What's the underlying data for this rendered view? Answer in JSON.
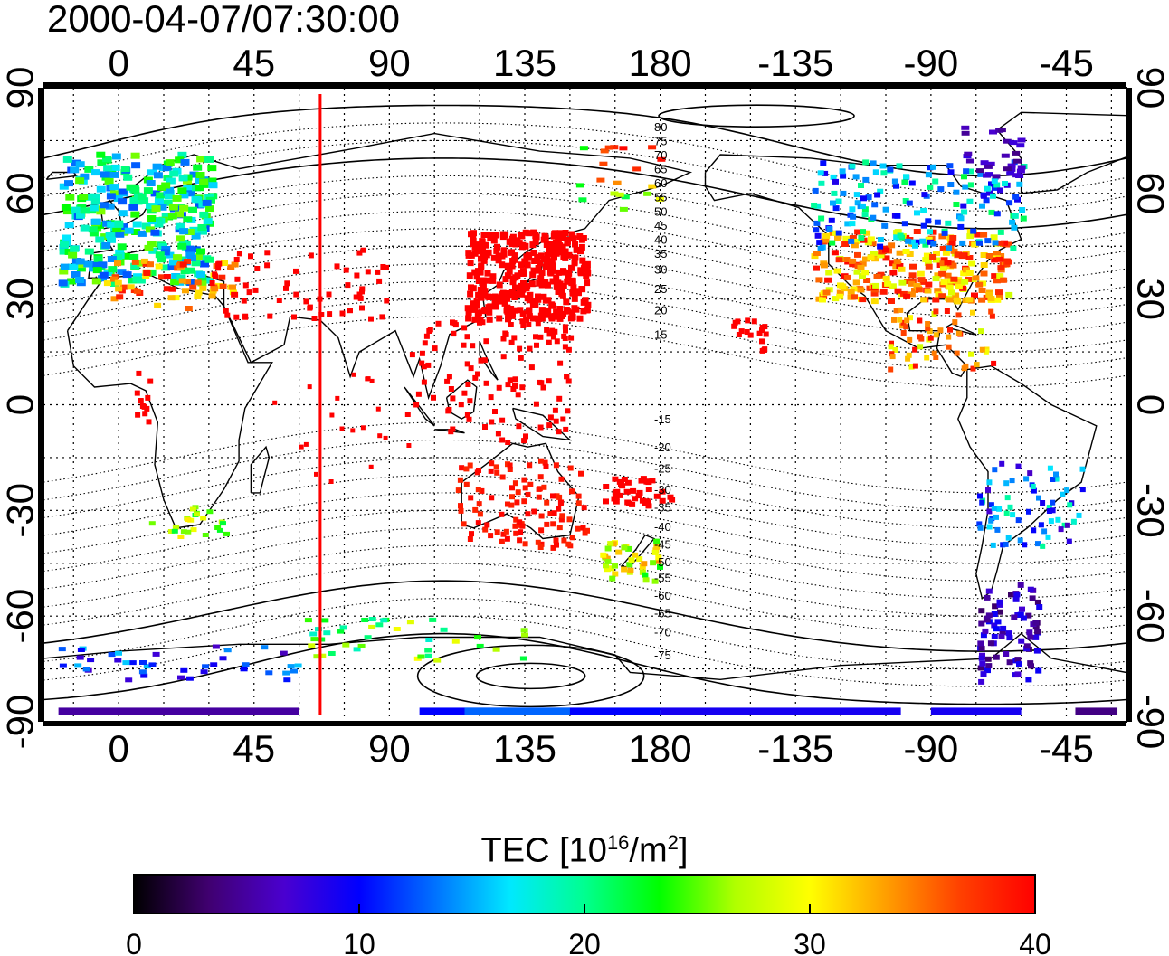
{
  "title": "2000-04-07/07:30:00",
  "colorbar": {
    "label_prefix": "TEC  [10",
    "label_exp1": "16",
    "label_mid": "/m",
    "label_exp2": "2",
    "label_suffix": "]",
    "ticks": [
      0,
      10,
      20,
      30,
      40
    ],
    "colors": [
      "#000000",
      "#400070",
      "#4a00d0",
      "#0000ff",
      "#0070ff",
      "#00e8ff",
      "#00ff90",
      "#00ff00",
      "#b0ff00",
      "#ffff00",
      "#ffa000",
      "#ff4000",
      "#ff0000"
    ]
  },
  "axes": {
    "top_ticks": [
      "0",
      "45",
      "90",
      "135",
      "180",
      "-135",
      "-90",
      "-45"
    ],
    "bottom_ticks": [
      "0",
      "45",
      "90",
      "135",
      "180",
      "-135",
      "-90",
      "-45"
    ],
    "left_ticks": [
      "90",
      "60",
      "30",
      "0",
      "-30",
      "-60",
      "-90"
    ],
    "right_ticks": [
      "90",
      "60",
      "30",
      "0",
      "-30",
      "-60",
      "-90"
    ],
    "lon_range": [
      -25,
      335
    ],
    "lat_range": [
      -90,
      90
    ]
  },
  "terminator_lon": 67,
  "contour_labels": [
    "80",
    "75",
    "70",
    "65",
    "60",
    "55",
    "50",
    "45",
    "40",
    "35",
    "30",
    "25",
    "20",
    "15",
    "-15",
    "-20",
    "-25",
    "-30",
    "-35",
    "-40",
    "-45",
    "-50",
    "-55",
    "-60",
    "-65",
    "-70",
    "-75"
  ]
}
